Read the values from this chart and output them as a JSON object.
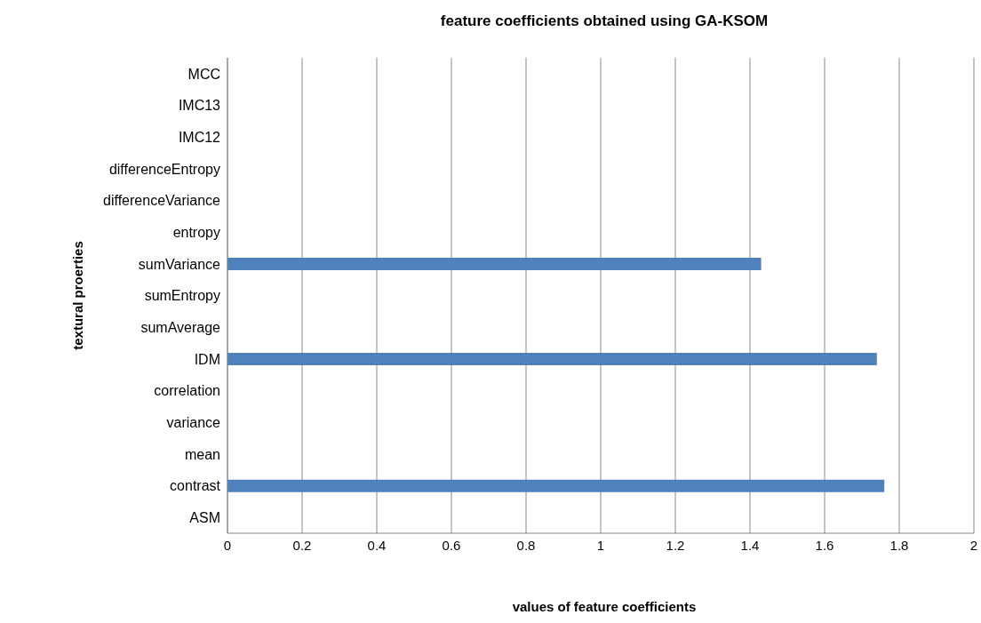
{
  "chart_data": {
    "type": "bar",
    "orientation": "horizontal",
    "title": "feature coefficients obtained using GA-KSOM",
    "xlabel": "values of feature coefficients",
    "ylabel": "textural proerties",
    "categories": [
      "MCC",
      "IMC13",
      "IMC12",
      "differenceEntropy",
      "differenceVariance",
      "entropy",
      "sumVariance",
      "sumEntropy",
      "sumAverage",
      "IDM",
      "correlation",
      "variance",
      "mean",
      "contrast",
      "ASM"
    ],
    "values": [
      0,
      0,
      0,
      0,
      0,
      0,
      1.43,
      0,
      0,
      1.74,
      0,
      0,
      0,
      1.76,
      0
    ],
    "color": "#4f81bd",
    "xlim": [
      0,
      2
    ],
    "xticks": [
      0,
      0.2,
      0.4,
      0.6,
      0.8,
      1,
      1.2,
      1.4,
      1.6,
      1.8,
      2
    ],
    "grid": "x"
  }
}
